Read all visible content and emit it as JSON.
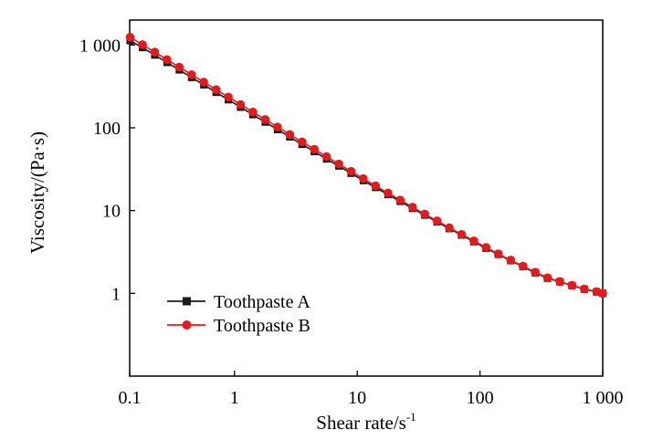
{
  "chart_data": {
    "type": "line",
    "title": "",
    "x_scale": "log",
    "y_scale": "log",
    "xlim": [
      0.14,
      1000
    ],
    "ylim": [
      0.1,
      2000
    ],
    "x_ticks": [
      {
        "value": 0.1,
        "label": "0.1"
      },
      {
        "value": 1,
        "label": "1"
      },
      {
        "value": 10,
        "label": "10"
      },
      {
        "value": 100,
        "label": "100"
      },
      {
        "value": 1000,
        "label": "1 000"
      }
    ],
    "y_ticks": [
      {
        "value": 1,
        "label": "1"
      },
      {
        "value": 10,
        "label": "10"
      },
      {
        "value": 100,
        "label": "100"
      },
      {
        "value": 1000,
        "label": "1 000"
      }
    ],
    "xlabel_main": "Shear rate/s",
    "xlabel_sup": "-1",
    "ylabel": "Viscosity/(Pa·s)",
    "grid": false,
    "legend_position": "lower-left",
    "series": [
      {
        "name": "Toothpaste A",
        "color": "#1a1a1a",
        "marker": "square",
        "points": [
          [
            0.141,
            1130
          ],
          [
            0.178,
            930
          ],
          [
            0.224,
            755
          ],
          [
            0.282,
            615
          ],
          [
            0.355,
            500
          ],
          [
            0.447,
            405
          ],
          [
            0.562,
            330
          ],
          [
            0.708,
            268
          ],
          [
            0.891,
            218
          ],
          [
            1.12,
            177
          ],
          [
            1.41,
            144
          ],
          [
            1.78,
            117
          ],
          [
            2.24,
            95
          ],
          [
            2.82,
            77.5
          ],
          [
            3.55,
            63
          ],
          [
            4.47,
            51.5
          ],
          [
            5.62,
            42
          ],
          [
            7.08,
            34.5
          ],
          [
            8.91,
            28.2
          ],
          [
            11.2,
            23
          ],
          [
            14.1,
            19
          ],
          [
            17.8,
            15.6
          ],
          [
            22.4,
            12.9
          ],
          [
            28.2,
            10.6
          ],
          [
            35.5,
            8.8
          ],
          [
            44.7,
            7.3
          ],
          [
            56.2,
            6.05
          ],
          [
            70.8,
            5.05
          ],
          [
            89.1,
            4.2
          ],
          [
            112,
            3.5
          ],
          [
            141,
            2.95
          ],
          [
            178,
            2.48
          ],
          [
            224,
            2.1
          ],
          [
            282,
            1.77
          ],
          [
            355,
            1.52
          ],
          [
            447,
            1.38
          ],
          [
            562,
            1.24
          ],
          [
            708,
            1.12
          ],
          [
            891,
            1.04
          ],
          [
            1000,
            1.0
          ]
        ]
      },
      {
        "name": "Toothpaste B",
        "color": "#e41a1c",
        "marker": "circle",
        "points": [
          [
            0.141,
            1240
          ],
          [
            0.178,
            1010
          ],
          [
            0.224,
            820
          ],
          [
            0.282,
            665
          ],
          [
            0.355,
            540
          ],
          [
            0.447,
            438
          ],
          [
            0.562,
            356
          ],
          [
            0.708,
            289
          ],
          [
            0.891,
            235
          ],
          [
            1.12,
            191
          ],
          [
            1.41,
            155
          ],
          [
            1.78,
            126
          ],
          [
            2.24,
            102
          ],
          [
            2.82,
            83
          ],
          [
            3.55,
            67.5
          ],
          [
            4.47,
            55
          ],
          [
            5.62,
            44.8
          ],
          [
            7.08,
            36.5
          ],
          [
            8.91,
            29.8
          ],
          [
            11.2,
            24.3
          ],
          [
            14.1,
            19.9
          ],
          [
            17.8,
            16.3
          ],
          [
            22.4,
            13.4
          ],
          [
            28.2,
            11
          ],
          [
            35.5,
            9.05
          ],
          [
            44.7,
            7.5
          ],
          [
            56.2,
            6.2
          ],
          [
            70.8,
            5.15
          ],
          [
            89.1,
            4.3
          ],
          [
            112,
            3.58
          ],
          [
            141,
            3.0
          ],
          [
            178,
            2.52
          ],
          [
            224,
            2.13
          ],
          [
            282,
            1.8
          ],
          [
            355,
            1.54
          ],
          [
            447,
            1.39
          ],
          [
            562,
            1.25
          ],
          [
            708,
            1.13
          ],
          [
            891,
            1.05
          ],
          [
            1000,
            1.0
          ]
        ]
      }
    ]
  }
}
